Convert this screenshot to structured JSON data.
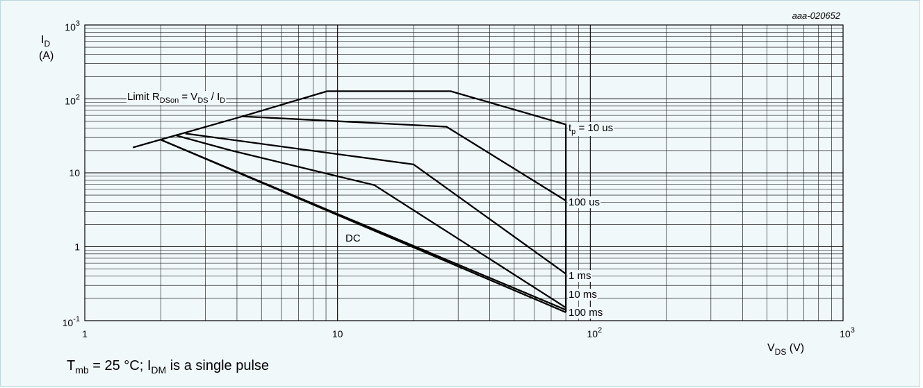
{
  "chart_data": {
    "type": "line",
    "title": "",
    "figure_id": "aaa-020652",
    "x_scale": "log",
    "y_scale": "log",
    "xlim": [
      1,
      1000
    ],
    "ylim": [
      0.1,
      1000
    ],
    "grid": true,
    "xlabel": {
      "main": "V",
      "sub": "DS",
      "unit": " (V)"
    },
    "ylabel": {
      "main": "I",
      "sub": "D",
      "unit": "(A)"
    },
    "x_ticks": [
      {
        "value": 1,
        "base": "1",
        "exp": ""
      },
      {
        "value": 10,
        "base": "10",
        "exp": ""
      },
      {
        "value": 100,
        "base": "10",
        "exp": "2"
      },
      {
        "value": 1000,
        "base": "10",
        "exp": "3"
      }
    ],
    "y_ticks": [
      {
        "value": 0.1,
        "base": "10",
        "exp": "-1"
      },
      {
        "value": 1,
        "base": "1",
        "exp": ""
      },
      {
        "value": 10,
        "base": "10",
        "exp": ""
      },
      {
        "value": 100,
        "base": "10",
        "exp": "2"
      },
      {
        "value": 1000,
        "base": "10",
        "exp": "3"
      }
    ],
    "series": [
      {
        "name": "Limit RDSon = VDS / ID",
        "label_parts": [
          [
            "Limit R",
            ""
          ],
          [
            "DSon",
            "sub"
          ],
          [
            " = V",
            ""
          ],
          [
            "DS",
            "sub"
          ],
          [
            " / I",
            ""
          ],
          [
            "D",
            "sub"
          ]
        ],
        "points": [
          [
            1.55,
            22
          ],
          [
            4.2,
            58
          ],
          [
            9.1,
            127
          ]
        ]
      },
      {
        "name": "tp = 10 us",
        "label_parts": [
          [
            "t",
            ""
          ],
          [
            "p",
            "sub"
          ],
          [
            " = 10 us",
            ""
          ]
        ],
        "points": [
          [
            9.1,
            127
          ],
          [
            28,
            127
          ],
          [
            80,
            45
          ],
          [
            80,
            0.13
          ]
        ]
      },
      {
        "name": "100 us",
        "label_parts": [
          [
            "100 us",
            ""
          ]
        ],
        "points": [
          [
            4.2,
            58
          ],
          [
            27,
            42
          ],
          [
            80,
            4.2
          ]
        ]
      },
      {
        "name": "1 ms",
        "label_parts": [
          [
            "1 ms",
            ""
          ]
        ],
        "points": [
          [
            2.5,
            34
          ],
          [
            20,
            13
          ],
          [
            80,
            0.43
          ]
        ]
      },
      {
        "name": "10 ms",
        "label_parts": [
          [
            "10 ms",
            ""
          ]
        ],
        "points": [
          [
            2.3,
            32
          ],
          [
            3.8,
            20
          ],
          [
            14,
            6.8
          ],
          [
            80,
            0.15
          ]
        ]
      },
      {
        "name": "100 ms",
        "label_parts": [
          [
            "100 ms",
            ""
          ]
        ],
        "points": [
          [
            2.0,
            28
          ],
          [
            80,
            0.13
          ]
        ]
      },
      {
        "name": "DC",
        "label_parts": [
          [
            "DC",
            ""
          ]
        ],
        "points": [
          [
            2.0,
            28
          ],
          [
            80,
            0.14
          ]
        ]
      }
    ],
    "colors": {
      "background": "#f1f8fa",
      "border": "#b9d7dd",
      "line": "#000000",
      "grid": "#000000"
    }
  },
  "footnote": {
    "t": "T",
    "t_sub": "mb",
    "mid": " = 25 °C; I",
    "i_sub": "DM",
    "end": " is a single pulse"
  }
}
